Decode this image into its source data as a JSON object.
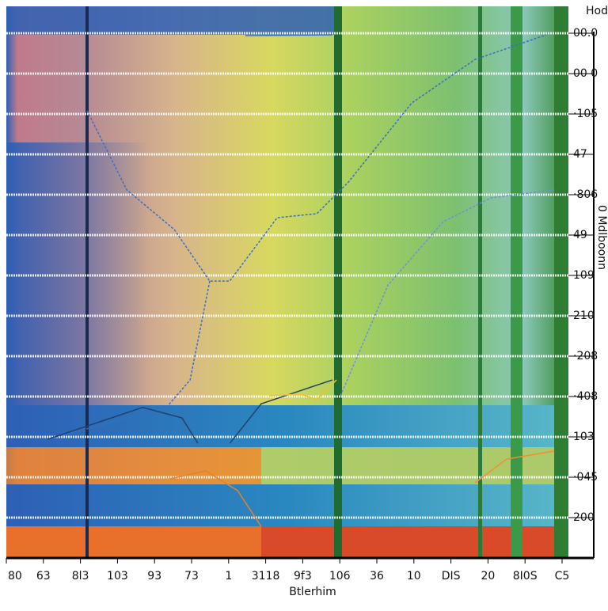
{
  "chart_data": {
    "type": "line",
    "corner_label": "Hod",
    "x_label": "Btlerhim",
    "y_label": "0 Mdlboonn",
    "xlim": [
      0,
      15
    ],
    "xticks": [
      {
        "value": 0,
        "label": "80"
      },
      {
        "value": 1,
        "label": "63"
      },
      {
        "value": 2,
        "label": "8l3"
      },
      {
        "value": 3,
        "label": "103"
      },
      {
        "value": 4,
        "label": "93"
      },
      {
        "value": 5,
        "label": "73"
      },
      {
        "value": 6,
        "label": "1"
      },
      {
        "value": 7,
        "label": "3118"
      },
      {
        "value": 8,
        "label": "9f3"
      },
      {
        "value": 9,
        "label": "106"
      },
      {
        "value": 10,
        "label": "36"
      },
      {
        "value": 11,
        "label": "10"
      },
      {
        "value": 12,
        "label": "DIS"
      },
      {
        "value": 13,
        "label": "20"
      },
      {
        "value": 14,
        "label": "8I0S"
      },
      {
        "value": 15,
        "label": "C5"
      }
    ],
    "ylim": [
      0,
      13
    ],
    "yticks": [
      {
        "value": 1,
        "label": "200"
      },
      {
        "value": 2,
        "label": "·045"
      },
      {
        "value": 3,
        "label": "103"
      },
      {
        "value": 4,
        "label": "·408"
      },
      {
        "value": 5,
        "label": "·208"
      },
      {
        "value": 6,
        "label": "210"
      },
      {
        "value": 7,
        "label": "109"
      },
      {
        "value": 8,
        "label": "49"
      },
      {
        "value": 9,
        "label": "·806"
      },
      {
        "value": 10,
        "label": "47"
      },
      {
        "value": 11,
        "label": "·105"
      },
      {
        "value": 12,
        "label": "00 0"
      },
      {
        "value": 13,
        "label": "00.0"
      }
    ],
    "grid": true,
    "series": [
      {
        "color": "#3a6fc0",
        "dash": true,
        "x": [
          2.18,
          3.25,
          4.53,
          5.49,
          6.03,
          7.31,
          8.38,
          9.23,
          10.94,
          12.65,
          14.57
        ],
        "values": [
          11.08,
          9.12,
          8.14,
          6.86,
          6.86,
          8.43,
          8.53,
          9.31,
          11.27,
          12.35,
          12.96
        ]
      },
      {
        "color": "#3a6fc0",
        "dash": true,
        "x": [
          5.49,
          4.96,
          4.32,
          1.11
        ],
        "values": [
          6.86,
          4.41,
          3.73,
          2.94
        ]
      },
      {
        "color": "#3a6fc0",
        "dash": false,
        "x": [
          6.45,
          8.8
        ],
        "values": [
          12.94,
          12.96
        ]
      },
      {
        "color": "#6f8fd8",
        "dash": true,
        "x": [
          9.02,
          10.3,
          11.79,
          13.08,
          14.79
        ],
        "values": [
          4.02,
          6.76,
          8.33,
          8.92,
          9.12
        ]
      },
      {
        "color": "#22406a",
        "dash": false,
        "x": [
          1.11,
          3.68,
          4.74,
          5.17
        ],
        "values": [
          2.94,
          3.73,
          3.47,
          2.84
        ]
      },
      {
        "color": "#22406a",
        "dash": false,
        "x": [
          6.03,
          6.88,
          8.8
        ],
        "values": [
          2.84,
          3.82,
          4.41
        ]
      },
      {
        "color": "#e8802a",
        "dash": false,
        "x": [
          4.42,
          5.38,
          6.24,
          6.88
        ],
        "values": [
          1.96,
          2.16,
          1.67,
          0.78
        ]
      },
      {
        "color": "#f0c030",
        "dash": false,
        "x": [
          7.09,
          7.95,
          8.38,
          8.91
        ],
        "values": [
          4.02,
          4.06,
          3.92,
          4.41
        ]
      },
      {
        "color": "#f09030",
        "dash": false,
        "x": [
          12.65,
          13.5,
          14.79
        ],
        "values": [
          1.86,
          2.45,
          2.65
        ]
      }
    ]
  }
}
